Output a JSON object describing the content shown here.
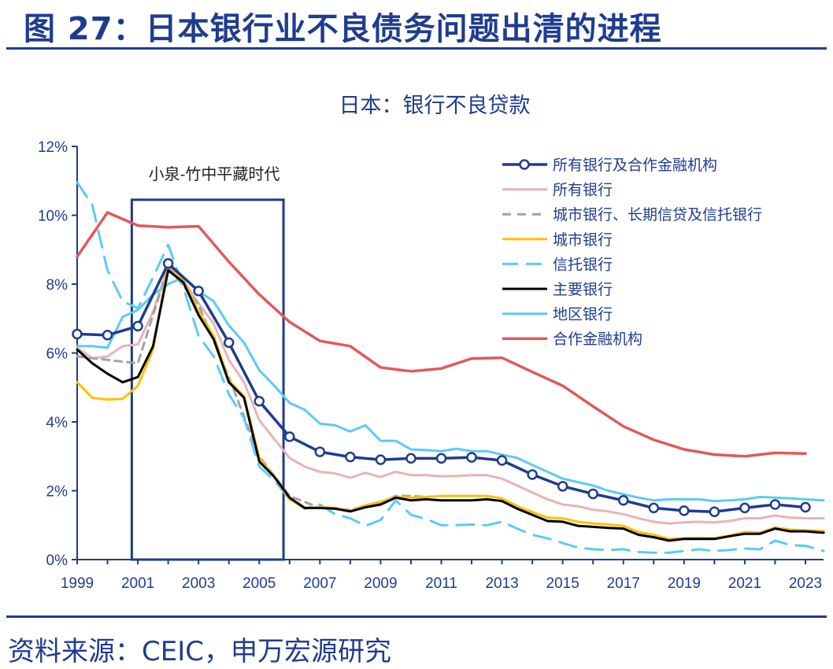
{
  "header": {
    "title": "图 27：日本银行业不良债务问题出清的进程"
  },
  "footer": {
    "source": "资料来源：CEIC，申万宏源研究"
  },
  "colors": {
    "brand": "#1f3c8f"
  },
  "chart_data": {
    "type": "line",
    "title": "日本：银行不良贷款",
    "xlabel": "",
    "ylabel": "",
    "xlim": [
      1999,
      2023.6
    ],
    "ylim": [
      0,
      12
    ],
    "yticks": [
      0,
      2,
      4,
      6,
      8,
      10,
      12
    ],
    "ytick_labels": [
      "0%",
      "2%",
      "4%",
      "6%",
      "8%",
      "10%",
      "12%"
    ],
    "xticks": [
      1999,
      2001,
      2003,
      2005,
      2007,
      2009,
      2011,
      2013,
      2015,
      2017,
      2019,
      2021,
      2023
    ],
    "xtick_labels": [
      "1999",
      "2001",
      "2003",
      "2005",
      "2007",
      "2009",
      "2011",
      "2013",
      "2015",
      "2017",
      "2019",
      "2021",
      "2023"
    ],
    "legend_position": "top-right",
    "annotation": {
      "text": "小泉-竹中平藏时代",
      "x_range": [
        2000.8,
        2005.8
      ],
      "y_range": [
        0,
        10.45
      ]
    },
    "series": [
      {
        "name": "所有银行及合作金融机构",
        "color": "#1f3c8f",
        "dash": "solid",
        "width": 3.5,
        "marker": "circle",
        "x": [
          1999,
          2000,
          2001,
          2002,
          2003,
          2004,
          2005,
          2006,
          2007,
          2008,
          2009,
          2010,
          2011,
          2012,
          2013,
          2014,
          2015,
          2016,
          2017,
          2018,
          2019,
          2020,
          2021,
          2022,
          2023
        ],
        "values": [
          6.55,
          6.52,
          6.78,
          8.6,
          7.8,
          6.3,
          4.6,
          3.57,
          3.13,
          2.98,
          2.9,
          2.94,
          2.94,
          2.97,
          2.88,
          2.47,
          2.13,
          1.91,
          1.72,
          1.5,
          1.42,
          1.39,
          1.5,
          1.6,
          1.52
        ]
      },
      {
        "name": "所有银行",
        "color": "#e8b4b4",
        "dash": "solid",
        "width": 3,
        "x": [
          1999,
          1999.5,
          2000,
          2000.5,
          2001,
          2001.5,
          2002,
          2002.5,
          2003,
          2003.5,
          2004,
          2004.5,
          2005,
          2005.5,
          2006,
          2006.5,
          2007,
          2007.5,
          2008,
          2008.5,
          2009,
          2009.5,
          2010,
          2010.5,
          2011,
          2011.5,
          2012,
          2012.5,
          2013,
          2013.5,
          2014,
          2014.5,
          2015,
          2015.5,
          2016,
          2016.5,
          2017,
          2017.5,
          2018,
          2018.5,
          2019,
          2019.5,
          2020,
          2020.5,
          2021,
          2021.5,
          2022,
          2022.5,
          2023,
          2023.6
        ],
        "values": [
          6.15,
          5.85,
          5.9,
          6.2,
          6.25,
          7.2,
          8.5,
          8.1,
          7.45,
          6.85,
          5.8,
          5.15,
          4.05,
          3.5,
          2.95,
          2.7,
          2.55,
          2.5,
          2.38,
          2.52,
          2.4,
          2.55,
          2.45,
          2.45,
          2.42,
          2.43,
          2.45,
          2.45,
          2.35,
          2.15,
          1.95,
          1.75,
          1.6,
          1.55,
          1.45,
          1.4,
          1.32,
          1.2,
          1.1,
          1.05,
          1.08,
          1.1,
          1.08,
          1.12,
          1.2,
          1.2,
          1.28,
          1.22,
          1.2,
          1.2
        ]
      },
      {
        "name": "城市银行、长期信贷及信托银行",
        "color": "#a3a3a3",
        "dash": "dashed",
        "width": 3,
        "x": [
          1999,
          2000,
          2001,
          2002,
          2003,
          2004,
          2005,
          2006,
          2007,
          2008,
          2009,
          2009.5,
          2010,
          2010.5
        ],
        "values": [
          5.9,
          5.8,
          5.7,
          8.5,
          7.4,
          5.3,
          3.0,
          1.85,
          1.5,
          1.45,
          1.65,
          1.85,
          1.85,
          1.82
        ]
      },
      {
        "name": "城市银行",
        "color": "#ffc000",
        "dash": "solid",
        "width": 3,
        "x": [
          1999,
          1999.5,
          2000,
          2000.5,
          2001,
          2001.5,
          2002,
          2002.5,
          2003,
          2003.5,
          2004,
          2004.5,
          2005,
          2005.5,
          2006,
          2006.5,
          2007,
          2007.5,
          2008,
          2008.5,
          2009,
          2009.5,
          2010,
          2010.5,
          2011,
          2011.5,
          2012,
          2012.5,
          2013,
          2013.5,
          2014,
          2014.5,
          2015,
          2015.5,
          2016,
          2016.5,
          2017,
          2017.5,
          2018,
          2018.5,
          2019,
          2019.5,
          2020,
          2020.5,
          2021,
          2021.5,
          2022,
          2022.5,
          2023,
          2023.6
        ],
        "values": [
          5.15,
          4.7,
          4.65,
          4.67,
          5.05,
          6.1,
          8.6,
          8.1,
          7.2,
          6.5,
          5.2,
          4.75,
          2.95,
          2.4,
          1.75,
          1.5,
          1.52,
          1.5,
          1.42,
          1.58,
          1.68,
          1.82,
          1.8,
          1.82,
          1.85,
          1.85,
          1.85,
          1.85,
          1.78,
          1.55,
          1.38,
          1.22,
          1.2,
          1.1,
          1.05,
          1.02,
          0.98,
          0.8,
          0.72,
          0.6,
          0.62,
          0.63,
          0.62,
          0.7,
          0.8,
          0.78,
          0.93,
          0.87,
          0.85,
          0.83
        ]
      },
      {
        "name": "信托银行",
        "color": "#5ccbf5",
        "dash": "long-dash",
        "width": 3,
        "x": [
          1999,
          1999.5,
          2000,
          2000.5,
          2001,
          2001.5,
          2002,
          2002.5,
          2003,
          2003.5,
          2004,
          2004.5,
          2005,
          2005.5,
          2006,
          2006.5,
          2007,
          2007.5,
          2008,
          2008.5,
          2009,
          2009.5,
          2010,
          2010.5,
          2011,
          2011.5,
          2012,
          2012.5,
          2013,
          2013.5,
          2014,
          2014.5,
          2015,
          2015.5,
          2016,
          2016.5,
          2017,
          2017.5,
          2018,
          2018.5,
          2019,
          2019.5,
          2020,
          2020.5,
          2021,
          2021.5,
          2022,
          2022.5,
          2023,
          2023.6
        ],
        "values": [
          10.95,
          10.3,
          8.4,
          7.5,
          7.3,
          8.2,
          9.15,
          7.9,
          6.5,
          5.9,
          4.8,
          4.1,
          2.7,
          2.3,
          1.75,
          1.48,
          1.6,
          1.32,
          1.2,
          0.98,
          1.15,
          1.72,
          1.3,
          1.18,
          1.0,
          1.0,
          1.02,
          1.0,
          1.1,
          0.9,
          0.72,
          0.62,
          0.48,
          0.35,
          0.3,
          0.28,
          0.3,
          0.22,
          0.2,
          0.2,
          0.25,
          0.3,
          0.25,
          0.28,
          0.32,
          0.3,
          0.55,
          0.42,
          0.4,
          0.25
        ]
      },
      {
        "name": "主要银行",
        "color": "#000000",
        "dash": "solid",
        "width": 3,
        "x": [
          1999,
          1999.5,
          2000,
          2000.5,
          2001,
          2001.5,
          2002,
          2002.5,
          2003,
          2003.5,
          2004,
          2004.5,
          2005,
          2005.5,
          2006,
          2006.5,
          2007,
          2007.5,
          2008,
          2008.5,
          2009,
          2009.5,
          2010,
          2010.5,
          2011,
          2011.5,
          2012,
          2012.5,
          2013,
          2013.5,
          2014,
          2014.5,
          2015,
          2015.5,
          2016,
          2016.5,
          2017,
          2017.5,
          2018,
          2018.5,
          2019,
          2019.5,
          2020,
          2020.5,
          2021,
          2021.5,
          2022,
          2022.5,
          2023,
          2023.6
        ],
        "values": [
          6.1,
          5.7,
          5.4,
          5.15,
          5.3,
          6.2,
          8.4,
          8.05,
          7.1,
          6.4,
          5.15,
          4.7,
          2.85,
          2.4,
          1.8,
          1.5,
          1.5,
          1.48,
          1.4,
          1.52,
          1.6,
          1.8,
          1.72,
          1.75,
          1.72,
          1.72,
          1.72,
          1.75,
          1.7,
          1.48,
          1.3,
          1.12,
          1.1,
          0.98,
          0.95,
          0.92,
          0.9,
          0.72,
          0.65,
          0.55,
          0.6,
          0.6,
          0.6,
          0.68,
          0.75,
          0.75,
          0.9,
          0.82,
          0.82,
          0.78
        ]
      },
      {
        "name": "地区银行",
        "color": "#5ccbf5",
        "dash": "solid",
        "width": 3,
        "x": [
          1999,
          1999.5,
          2000,
          2000.5,
          2001,
          2001.5,
          2002,
          2002.5,
          2003,
          2003.5,
          2004,
          2004.5,
          2005,
          2005.5,
          2006,
          2006.5,
          2007,
          2007.5,
          2008,
          2008.5,
          2009,
          2009.5,
          2010,
          2010.5,
          2011,
          2011.5,
          2012,
          2012.5,
          2013,
          2013.5,
          2014,
          2014.5,
          2015,
          2015.5,
          2016,
          2016.5,
          2017,
          2017.5,
          2018,
          2018.5,
          2019,
          2019.5,
          2020,
          2020.5,
          2021,
          2021.5,
          2022,
          2022.5,
          2023,
          2023.6
        ],
        "values": [
          6.2,
          6.2,
          6.15,
          7.05,
          7.25,
          7.7,
          8.0,
          8.2,
          7.8,
          7.5,
          6.8,
          6.3,
          5.5,
          5.05,
          4.55,
          4.35,
          3.95,
          3.9,
          3.72,
          3.9,
          3.45,
          3.45,
          3.2,
          3.18,
          3.15,
          3.22,
          3.15,
          3.15,
          3.05,
          2.95,
          2.75,
          2.55,
          2.35,
          2.25,
          2.15,
          2.0,
          1.9,
          1.8,
          1.72,
          1.75,
          1.75,
          1.75,
          1.7,
          1.72,
          1.75,
          1.82,
          1.8,
          1.78,
          1.75,
          1.72
        ]
      },
      {
        "name": "合作金融机构",
        "color": "#e05a5a",
        "dash": "solid",
        "width": 3.5,
        "x": [
          1999,
          2000,
          2001,
          2002,
          2003,
          2004,
          2005,
          2006,
          2007,
          2008,
          2009,
          2010,
          2011,
          2012,
          2013,
          2014,
          2015,
          2016,
          2017,
          2018,
          2019,
          2020,
          2021,
          2022,
          2023
        ],
        "values": [
          8.8,
          10.08,
          9.7,
          9.65,
          9.68,
          8.65,
          7.7,
          6.9,
          6.35,
          6.2,
          5.58,
          5.47,
          5.55,
          5.84,
          5.86,
          5.45,
          5.05,
          4.45,
          3.87,
          3.48,
          3.2,
          3.05,
          3.0,
          3.1,
          3.08
        ]
      }
    ]
  }
}
